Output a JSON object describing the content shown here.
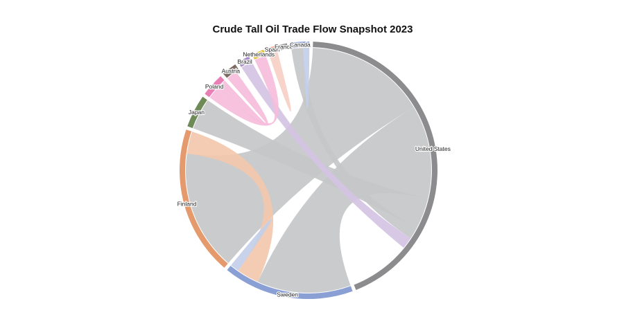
{
  "chart_data": {
    "type": "chord",
    "title": "Crude Tall Oil Trade Flow Snapshot 2023",
    "nodes": [
      {
        "name": "United States",
        "color": "#8c8c8e",
        "value": 37
      },
      {
        "name": "Sweden",
        "color": "#8a9fd3",
        "value": 14
      },
      {
        "name": "Finland",
        "color": "#e59a6e",
        "value": 16
      },
      {
        "name": "Japan",
        "color": "#6e8a57",
        "value": 3.5
      },
      {
        "name": "Poland",
        "color": "#ea7fb5",
        "value": 2.5
      },
      {
        "name": "Austria",
        "color": "#7a6a62",
        "value": 1.6
      },
      {
        "name": "Brazil",
        "color": "#a98fc8",
        "value": 1.3
      },
      {
        "name": "Netherlands",
        "color": "#e4bf3a",
        "value": 1.3
      },
      {
        "name": "Spain",
        "color": "#ef9e8a",
        "value": 1.0
      },
      {
        "name": "France",
        "color": "#8a8a8a",
        "value": 0.8
      },
      {
        "name": "Canada",
        "color": "#8ea2d8",
        "value": 2.0
      }
    ],
    "flows": [
      {
        "source": "United States",
        "target": "Finland",
        "value": 13.5,
        "color": "#c6c7c8"
      },
      {
        "source": "United States",
        "target": "Sweden",
        "value": 10.5,
        "color": "#c6c7c8"
      },
      {
        "source": "United States",
        "target": "Japan",
        "value": 3.5,
        "color": "#c6c7c8"
      },
      {
        "source": "United States",
        "target": "Canada",
        "value": 1.3,
        "color": "#c6c7c8"
      },
      {
        "source": "Finland",
        "target": "Sweden",
        "value": 2.5,
        "color": "#f2c8ad"
      },
      {
        "source": "Sweden",
        "target": "Sweden",
        "value": 1.5,
        "color": "#c3cfe9"
      },
      {
        "source": "Brazil",
        "target": "United States",
        "value": 1.3,
        "color": "#d4c3e3"
      },
      {
        "source": "Poland",
        "target": "Netherlands",
        "value": 1.3,
        "color": "#f5bddb"
      },
      {
        "source": "Poland",
        "target": "Austria",
        "value": 1.2,
        "color": "#f5bddb"
      },
      {
        "source": "Spain",
        "target": "Spain",
        "value": 0.6,
        "color": "#f6cfc4"
      },
      {
        "source": "Canada",
        "target": "Canada",
        "value": 0.7,
        "color": "#c3cfe9"
      }
    ]
  }
}
